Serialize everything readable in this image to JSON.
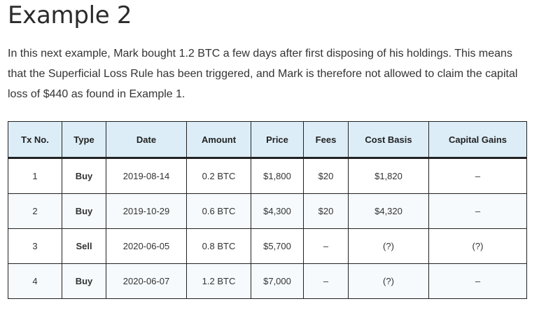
{
  "heading": "Example 2",
  "intro": "In this next example, Mark bought 1.2 BTC a few days after first disposing of his holdings. This means that the Superficial Loss Rule has been triggered, and Mark is therefore not allowed to claim the capital loss of $440 as found in Example 1.",
  "colors": {
    "header_bg": "#dcedf7",
    "buy": "#16875d",
    "sell": "#c33c3c",
    "unknown": "#c33c3c"
  },
  "table": {
    "headers": [
      "Tx No.",
      "Type",
      "Date",
      "Amount",
      "Price",
      "Fees",
      "Cost Basis",
      "Capital Gains"
    ],
    "rows": [
      {
        "tx": "1",
        "type": "Buy",
        "date": "2019-08-14",
        "amount": "0.2 BTC",
        "price": "$1,800",
        "fees": "$20",
        "cost_basis": "$1,820",
        "capital_gains": "–"
      },
      {
        "tx": "2",
        "type": "Buy",
        "date": "2019-10-29",
        "amount": "0.6 BTC",
        "price": "$4,300",
        "fees": "$20",
        "cost_basis": "$4,320",
        "capital_gains": "–"
      },
      {
        "tx": "3",
        "type": "Sell",
        "date": "2020-06-05",
        "amount": "0.8 BTC",
        "price": "$5,700",
        "fees": "–",
        "cost_basis": "(?)",
        "capital_gains": "(?)"
      },
      {
        "tx": "4",
        "type": "Buy",
        "date": "2020-06-07",
        "amount": "1.2 BTC",
        "price": "$7,000",
        "fees": "–",
        "cost_basis": "(?)",
        "capital_gains": "–"
      }
    ]
  }
}
